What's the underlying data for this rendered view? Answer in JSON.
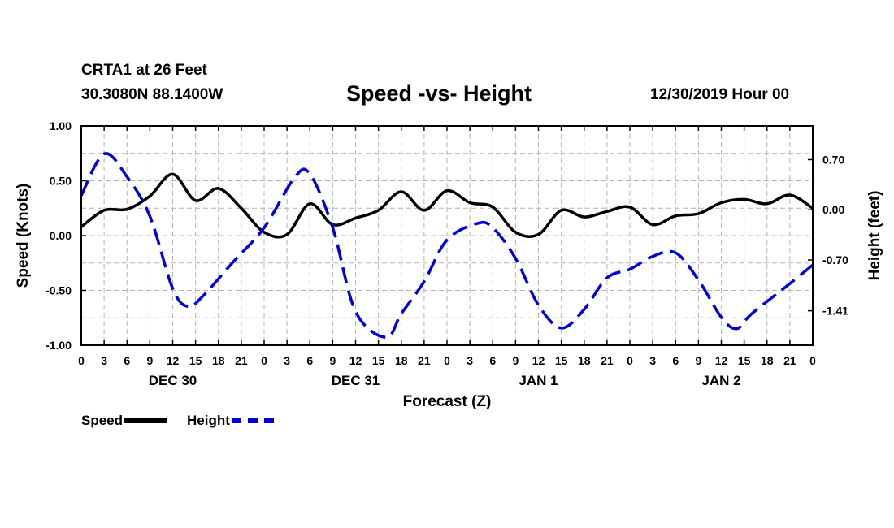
{
  "header": {
    "station": "CRTA1 at 26 Feet",
    "coords": "30.3080N 88.1400W",
    "title": "Speed -vs- Height",
    "datetime": "12/30/2019 Hour 00"
  },
  "legend": {
    "speed": "Speed",
    "height": "Height"
  },
  "colors": {
    "speed": "#000000",
    "height": "#0000dd",
    "grid": "#b4b4b4"
  },
  "chart_data": {
    "type": "line",
    "title": "Speed -vs- Height",
    "xlabel": "Forecast (Z)",
    "ylabel_left": "Speed (Knots)",
    "ylabel_right": "Height (feet)",
    "xlim": [
      0,
      96
    ],
    "ylim_left": [
      -1.0,
      1.0
    ],
    "ylim_right": [
      -1.89,
      1.17
    ],
    "left_ticks": [
      "1.00",
      "0.50",
      "0.00",
      "-0.50",
      "-1.00"
    ],
    "right_ticks": [
      "0.70",
      "0.00",
      "-0.70",
      "-1.41"
    ],
    "x_tick_labels": [
      "0",
      "3",
      "6",
      "9",
      "12",
      "15",
      "18",
      "21",
      "0",
      "3",
      "6",
      "9",
      "12",
      "15",
      "18",
      "21",
      "0",
      "3",
      "6",
      "9",
      "12",
      "15",
      "18",
      "21",
      "0",
      "3",
      "6",
      "9",
      "12",
      "15",
      "18",
      "21",
      "0"
    ],
    "day_labels": [
      {
        "label": "DEC 30",
        "hour": 12
      },
      {
        "label": "DEC 31",
        "hour": 36
      },
      {
        "label": "JAN 1",
        "hour": 60
      },
      {
        "label": "JAN 2",
        "hour": 84
      }
    ],
    "grid": true,
    "series": [
      {
        "name": "Speed",
        "axis": "left",
        "style": "solid",
        "x": [
          0,
          3,
          6,
          9,
          12,
          15,
          18,
          21,
          24,
          27,
          30,
          33,
          36,
          39,
          42,
          45,
          48,
          51,
          54,
          57,
          60,
          63,
          66,
          69,
          72,
          75,
          78,
          81,
          84,
          87,
          90,
          93,
          96
        ],
        "values": [
          0.08,
          0.23,
          0.24,
          0.36,
          0.56,
          0.32,
          0.43,
          0.25,
          0.03,
          0.01,
          0.29,
          0.1,
          0.16,
          0.23,
          0.4,
          0.23,
          0.41,
          0.3,
          0.26,
          0.03,
          0.01,
          0.23,
          0.17,
          0.22,
          0.26,
          0.1,
          0.18,
          0.2,
          0.3,
          0.33,
          0.29,
          0.37,
          0.25
        ]
      },
      {
        "name": "Height",
        "axis": "right",
        "style": "dashed",
        "x": [
          0,
          3,
          6,
          9,
          12,
          14,
          16,
          20,
          24,
          28,
          30,
          33,
          36,
          40,
          42,
          45,
          48,
          52,
          54,
          57,
          60,
          63,
          66,
          69,
          72,
          75,
          78,
          81,
          84,
          86,
          88,
          93,
          96
        ],
        "values": [
          0.2,
          0.78,
          0.46,
          -0.09,
          -1.1,
          -1.35,
          -1.2,
          -0.72,
          -0.25,
          0.45,
          0.5,
          -0.25,
          -1.42,
          -1.78,
          -1.45,
          -1.0,
          -0.42,
          -0.19,
          -0.25,
          -0.68,
          -1.33,
          -1.65,
          -1.39,
          -0.95,
          -0.83,
          -0.65,
          -0.6,
          -0.98,
          -1.5,
          -1.66,
          -1.45,
          -1.03,
          -0.77
        ]
      }
    ]
  }
}
